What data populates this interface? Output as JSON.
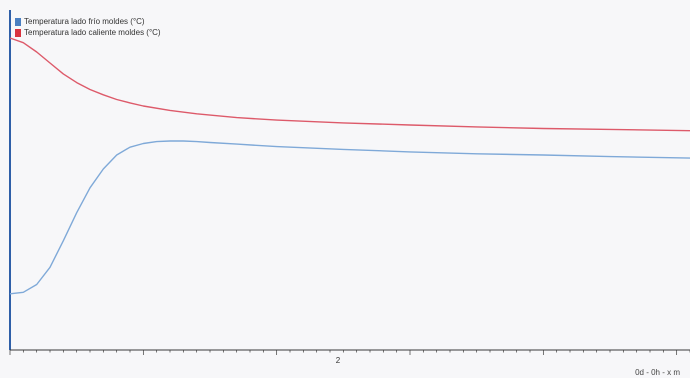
{
  "chart_data": {
    "type": "line",
    "xlim": [
      0,
      5.1
    ],
    "ylim": [
      0,
      1
    ],
    "grid": false,
    "legend_placement": "top-left",
    "xticks": [
      "2"
    ],
    "xlabel": "0d - 0h - x m",
    "series": [
      {
        "name": "Temperatura lado frío moldes (°C)",
        "color": "#7fa9d8",
        "x": [
          0.0,
          0.1,
          0.2,
          0.3,
          0.4,
          0.5,
          0.6,
          0.7,
          0.8,
          0.9,
          1.0,
          1.1,
          1.2,
          1.3,
          1.4,
          1.5,
          1.7,
          2.0,
          2.5,
          3.0,
          3.5,
          4.0,
          4.5,
          5.1
        ],
        "y": [
          0.18,
          0.185,
          0.21,
          0.265,
          0.35,
          0.44,
          0.52,
          0.58,
          0.625,
          0.65,
          0.662,
          0.668,
          0.67,
          0.67,
          0.668,
          0.665,
          0.66,
          0.652,
          0.643,
          0.635,
          0.629,
          0.625,
          0.62,
          0.615
        ]
      },
      {
        "name": "Temperatura lado caliente moldes (°C)",
        "color": "#dd5a6a",
        "x": [
          0.0,
          0.1,
          0.2,
          0.3,
          0.4,
          0.5,
          0.6,
          0.7,
          0.8,
          0.9,
          1.0,
          1.2,
          1.4,
          1.7,
          2.0,
          2.5,
          3.0,
          3.5,
          4.0,
          4.5,
          5.1
        ],
        "y": [
          1.0,
          0.985,
          0.955,
          0.92,
          0.885,
          0.857,
          0.835,
          0.818,
          0.803,
          0.792,
          0.782,
          0.768,
          0.757,
          0.745,
          0.737,
          0.728,
          0.721,
          0.715,
          0.71,
          0.707,
          0.703
        ]
      }
    ]
  },
  "colors": {
    "plot_background": "#f7f7f9",
    "axis": "#3a3a3a",
    "left_axis": "#2f5fa8"
  }
}
